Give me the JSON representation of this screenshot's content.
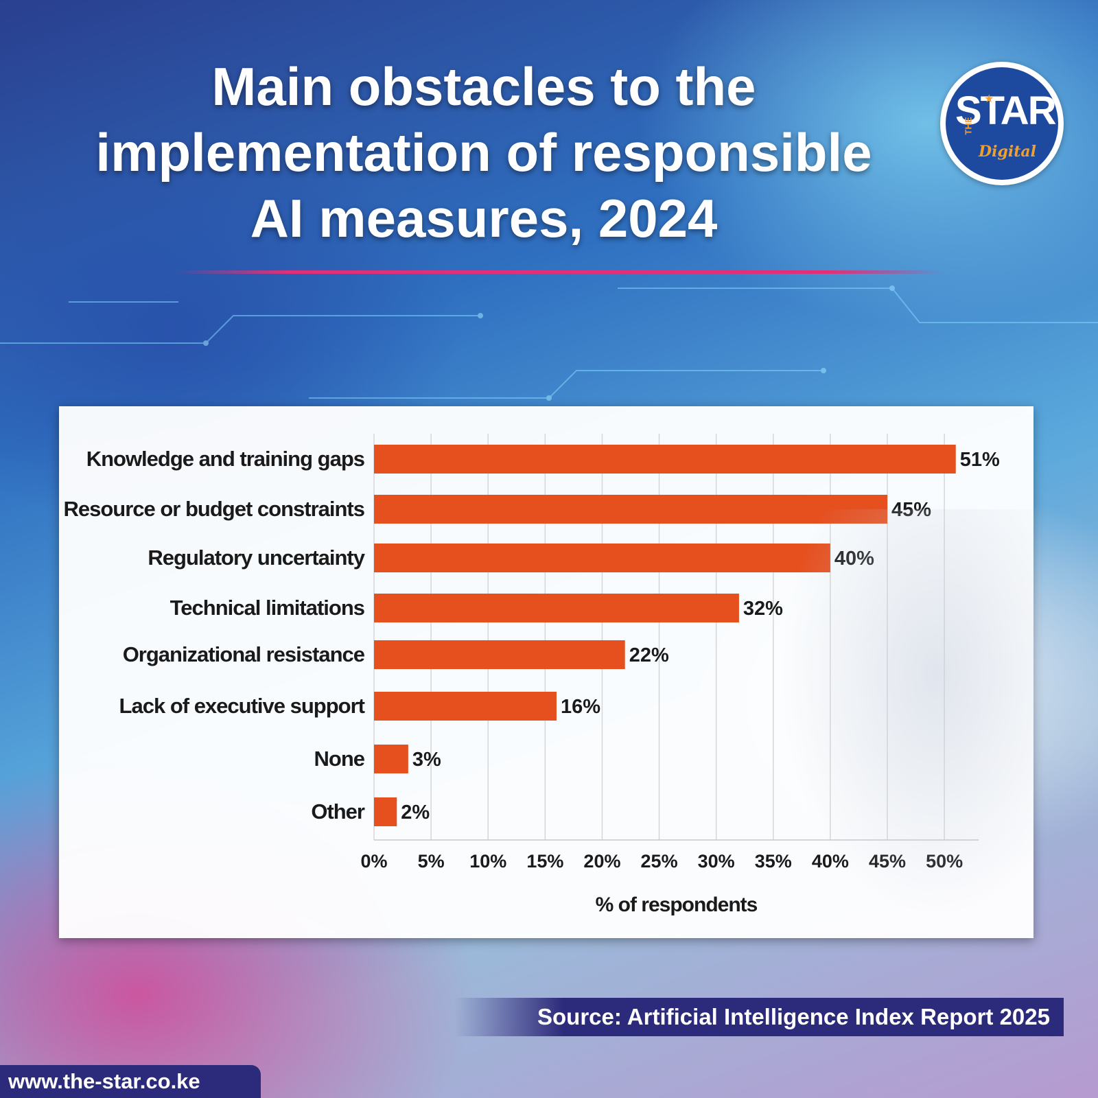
{
  "header": {
    "title_lines": [
      "Main obstacles to the",
      "implementation of responsible",
      "AI measures, 2024"
    ]
  },
  "logo": {
    "star": "STAR",
    "the": "THE",
    "digital": "Digital"
  },
  "chart_data": {
    "type": "bar",
    "orientation": "horizontal",
    "categories": [
      "Knowledge and training gaps",
      "Resource or budget constraints",
      "Regulatory uncertainty",
      "Technical limitations",
      "Organizational resistance",
      "Lack of executive support",
      "None",
      "Other"
    ],
    "values": [
      51,
      45,
      40,
      32,
      22,
      16,
      3,
      2
    ],
    "value_labels": [
      "51%",
      "45%",
      "40%",
      "32%",
      "22%",
      "16%",
      "3%",
      "2%"
    ],
    "x_ticks": [
      0,
      5,
      10,
      15,
      20,
      25,
      30,
      35,
      40,
      45,
      50
    ],
    "x_tick_labels": [
      "0%",
      "5%",
      "10%",
      "15%",
      "20%",
      "25%",
      "30%",
      "35%",
      "40%",
      "45%",
      "50%"
    ],
    "xlim": [
      0,
      53
    ],
    "xlabel": "% of respondents",
    "ylabel": "",
    "grid": "vertical",
    "bar_color": "#e64f1e"
  },
  "footer": {
    "source": "Source: Artificial Intelligence Index Report 2025",
    "website": "www.the-star.co.ke"
  },
  "colors": {
    "accent_rule": "#e0307a",
    "banner": "#2c2a7a",
    "logo_blue": "#1d4a9e",
    "logo_orange": "#f0a030"
  }
}
